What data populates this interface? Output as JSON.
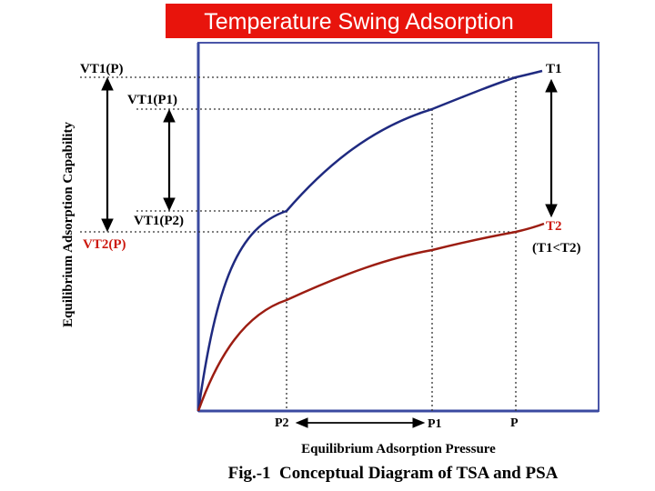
{
  "slide": {
    "title": "Temperature Swing Adsorption"
  },
  "colors": {
    "title_bg": "#e8140c",
    "curve_T1": "#1f2a80",
    "curve_T2": "#9c1d12",
    "label_red": "#cc1a10",
    "frame": "#4a55a8"
  },
  "diagram": {
    "y_axis_title": "Equilibrium Adsorption Capability",
    "x_axis_title": "Equilibrium Adsorption Pressure",
    "caption": "Fig.-1  Conceptual Diagram of TSA and PSA",
    "labels": {
      "vt1_p": "VT1(P)",
      "vt1_p1": "VT1(P1)",
      "vt1_p2": "VT1(P2)",
      "vt2_p": "VT2(P)",
      "t1": "T1",
      "t2": "T2",
      "t_relation": "(T1<T2)",
      "p2": "P2",
      "p1": "P1",
      "p": "P"
    },
    "curves": [
      {
        "name": "T1",
        "icon": "isotherm-curve"
      },
      {
        "name": "T2",
        "icon": "isotherm-curve"
      }
    ]
  }
}
